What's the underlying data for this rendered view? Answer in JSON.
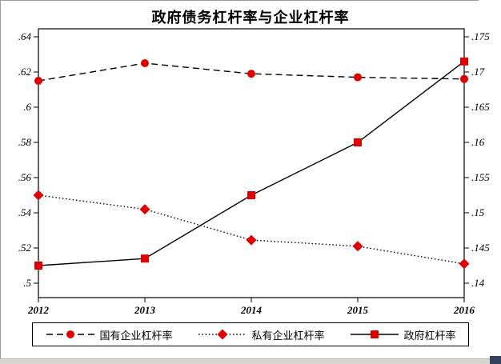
{
  "colors": {
    "marker": "#e00000",
    "line": "#000000"
  },
  "chart_data": {
    "type": "line",
    "title": "政府债务杠杆率与企业杠杆率",
    "x": [
      2012,
      2013,
      2014,
      2015,
      2016
    ],
    "x_tick_labels": [
      "2012",
      "2013",
      "2014",
      "2015",
      "2016"
    ],
    "grid": false,
    "legend_position": "bottom",
    "left_axis": {
      "range": [
        0.5,
        0.64
      ],
      "tick_values": [
        0.5,
        0.52,
        0.54,
        0.56,
        0.58,
        0.6,
        0.62,
        0.64
      ],
      "ticks": [
        ".5",
        ".52",
        ".54",
        ".56",
        ".58",
        ".6",
        ".62",
        ".64"
      ]
    },
    "right_axis": {
      "range": [
        0.14,
        0.175
      ],
      "tick_values": [
        0.14,
        0.145,
        0.15,
        0.155,
        0.16,
        0.165,
        0.17,
        0.175
      ],
      "ticks": [
        ".14",
        ".145",
        ".15",
        ".155",
        ".16",
        ".165",
        ".17",
        ".175"
      ]
    },
    "series": [
      {
        "key": "soe",
        "name": "国有企业杠杆率",
        "axis": "left",
        "line": "dashed",
        "marker": "circle",
        "values": [
          0.615,
          0.625,
          0.619,
          0.617,
          0.616
        ]
      },
      {
        "key": "private",
        "name": "私有企业杠杆率",
        "axis": "left",
        "line": "dotted",
        "marker": "diamond",
        "values": [
          0.55,
          0.542,
          0.5245,
          0.521,
          0.511
        ]
      },
      {
        "key": "government",
        "name": "政府杠杆率",
        "axis": "right",
        "line": "solid",
        "marker": "square",
        "values": [
          0.1425,
          0.1435,
          0.1525,
          0.16,
          0.1715
        ]
      }
    ]
  }
}
